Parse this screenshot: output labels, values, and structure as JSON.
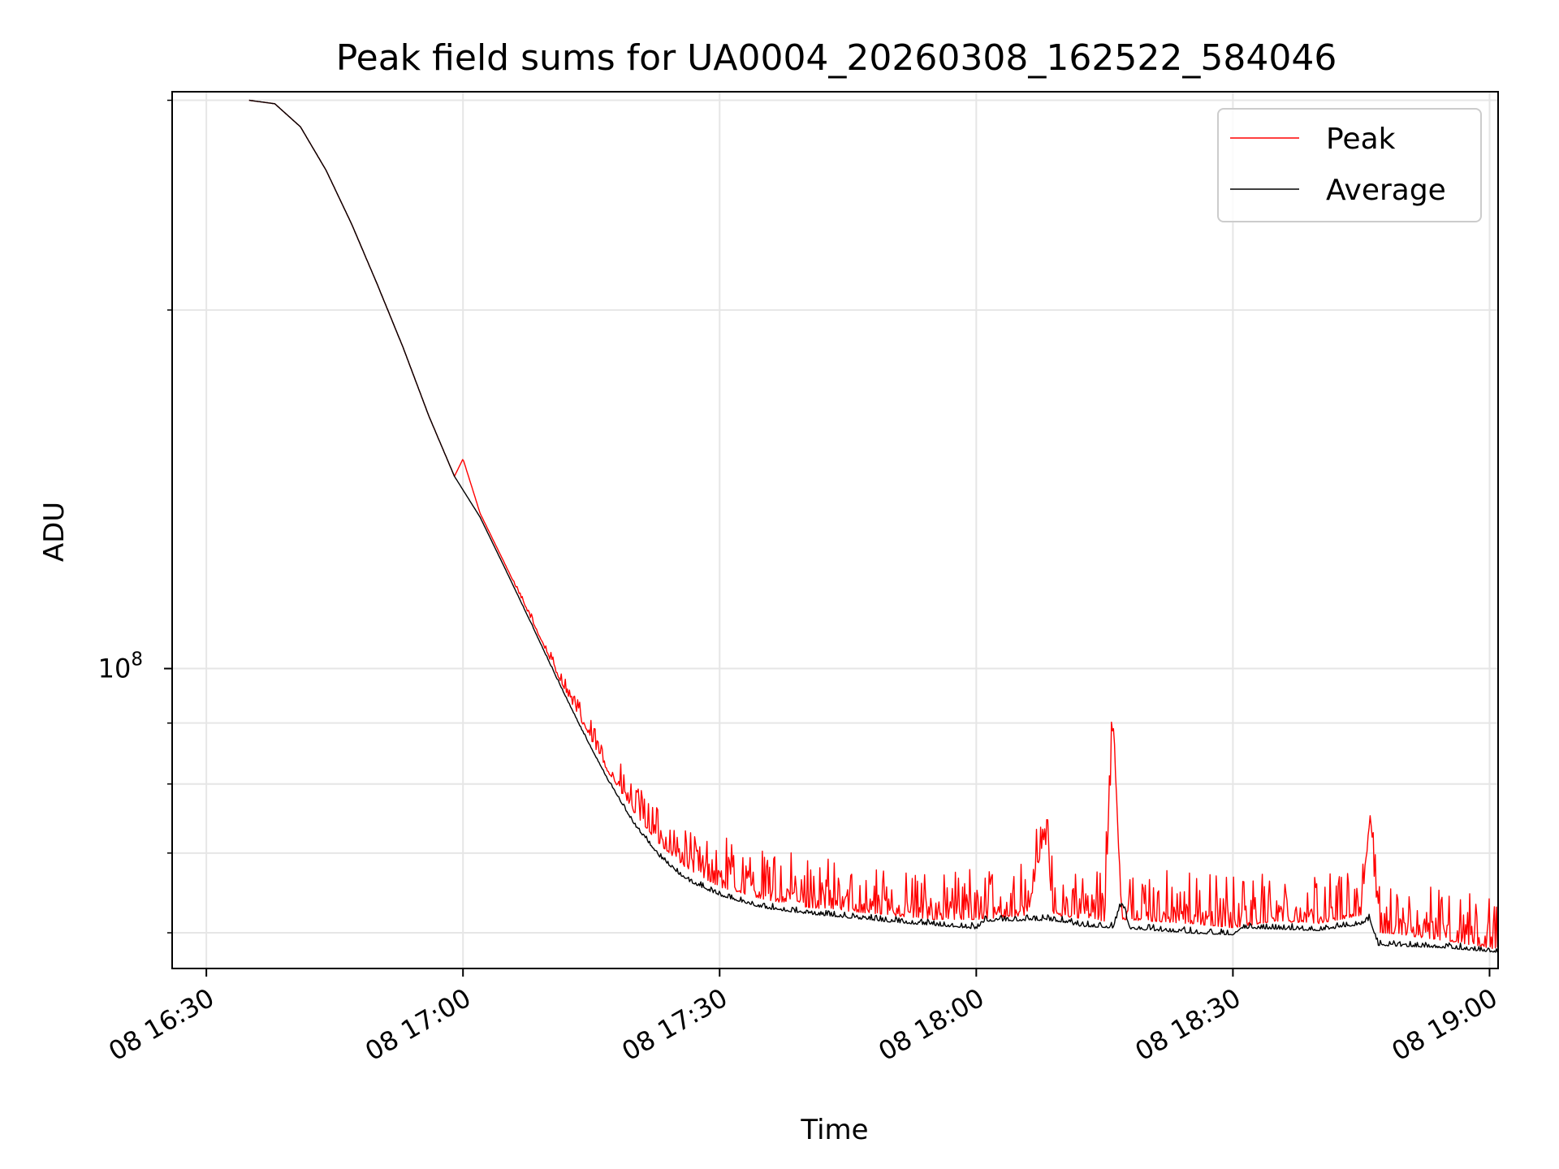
{
  "chart_data": {
    "type": "line",
    "title": "Peak field sums for UA0004_20260308_162522_584046",
    "xlabel": "Time",
    "ylabel": "ADU",
    "x_axis": {
      "scale": "time",
      "range": [
        "16:26",
        "19:01"
      ],
      "ticks": [
        {
          "time": "16:30",
          "label": "08 16:30"
        },
        {
          "time": "17:00",
          "label": "08 17:00"
        },
        {
          "time": "17:30",
          "label": "08 17:30"
        },
        {
          "time": "18:00",
          "label": "08 18:00"
        },
        {
          "time": "18:30",
          "label": "08 18:30"
        },
        {
          "time": "19:00",
          "label": "08 19:00"
        }
      ]
    },
    "y_axis": {
      "scale": "log",
      "range": [
        56000000,
        305000000
      ],
      "major_ticks": [
        {
          "value": 100000000,
          "base": "10",
          "exp": "8"
        }
      ],
      "minor_ticks": [
        60000000,
        70000000,
        80000000,
        90000000,
        200000000,
        300000000
      ]
    },
    "grid": true,
    "legend": "top-right",
    "colors": {
      "peak": "#ff0000",
      "average": "#000000",
      "grid": "#e6e6e6"
    },
    "series": [
      {
        "name": "Peak",
        "color": "#ff0000",
        "noise": 0.035,
        "points": [
          [
            "16:35",
            300000000
          ],
          [
            "16:38",
            298000000
          ],
          [
            "16:41",
            285000000
          ],
          [
            "16:44",
            262000000
          ],
          [
            "16:47",
            236000000
          ],
          [
            "16:50",
            210000000
          ],
          [
            "16:53",
            186000000
          ],
          [
            "16:56",
            163000000
          ],
          [
            "16:59",
            145000000
          ],
          [
            "17:00",
            150000000
          ],
          [
            "17:02",
            135000000
          ],
          [
            "17:05",
            122000000
          ],
          [
            "17:08",
            110000000
          ],
          [
            "17:11",
            99000000
          ],
          [
            "17:14",
            90000000
          ],
          [
            "17:17",
            82000000
          ],
          [
            "17:20",
            76000000
          ],
          [
            "17:23",
            71500000
          ],
          [
            "17:26",
            68500000
          ],
          [
            "17:30",
            66000000
          ],
          [
            "17:35",
            64500000
          ],
          [
            "17:40",
            63500000
          ],
          [
            "17:45",
            63000000
          ],
          [
            "17:50",
            62500000
          ],
          [
            "17:55",
            62000000
          ],
          [
            "18:00",
            62000000
          ],
          [
            "18:06",
            62500000
          ],
          [
            "18:08",
            73000000
          ],
          [
            "18:09",
            62500000
          ],
          [
            "18:15",
            61800000
          ],
          [
            "18:16",
            91000000
          ],
          [
            "18:17",
            62000000
          ],
          [
            "18:25",
            61500000
          ],
          [
            "18:30",
            61000000
          ],
          [
            "18:35",
            61800000
          ],
          [
            "18:40",
            61500000
          ],
          [
            "18:45",
            62500000
          ],
          [
            "18:46",
            75000000
          ],
          [
            "18:47",
            60500000
          ],
          [
            "18:55",
            59500000
          ],
          [
            "19:01",
            58500000
          ]
        ]
      },
      {
        "name": "Average",
        "color": "#000000",
        "noise": 0.004,
        "points": [
          [
            "16:35",
            300000000
          ],
          [
            "16:38",
            298000000
          ],
          [
            "16:41",
            285000000
          ],
          [
            "16:44",
            262000000
          ],
          [
            "16:47",
            236000000
          ],
          [
            "16:50",
            210000000
          ],
          [
            "16:53",
            186000000
          ],
          [
            "16:56",
            163000000
          ],
          [
            "16:59",
            145000000
          ],
          [
            "17:02",
            134000000
          ],
          [
            "17:05",
            121000000
          ],
          [
            "17:08",
            109000000
          ],
          [
            "17:11",
            98000000
          ],
          [
            "17:14",
            88500000
          ],
          [
            "17:17",
            80500000
          ],
          [
            "17:20",
            74000000
          ],
          [
            "17:23",
            69500000
          ],
          [
            "17:26",
            66500000
          ],
          [
            "17:30",
            64500000
          ],
          [
            "17:35",
            63000000
          ],
          [
            "17:40",
            62300000
          ],
          [
            "17:45",
            61800000
          ],
          [
            "17:50",
            61300000
          ],
          [
            "17:55",
            60900000
          ],
          [
            "18:00",
            60500000
          ],
          [
            "18:01",
            61400000
          ],
          [
            "18:08",
            61500000
          ],
          [
            "18:10",
            61300000
          ],
          [
            "18:12",
            60800000
          ],
          [
            "18:16",
            60600000
          ],
          [
            "18:17",
            63500000
          ],
          [
            "18:18",
            60500000
          ],
          [
            "18:25",
            60000000
          ],
          [
            "18:30",
            59800000
          ],
          [
            "18:31",
            60600000
          ],
          [
            "18:40",
            60300000
          ],
          [
            "18:45",
            61000000
          ],
          [
            "18:46",
            61600000
          ],
          [
            "18:47",
            58600000
          ],
          [
            "18:55",
            58300000
          ],
          [
            "19:01",
            57800000
          ]
        ]
      }
    ]
  }
}
